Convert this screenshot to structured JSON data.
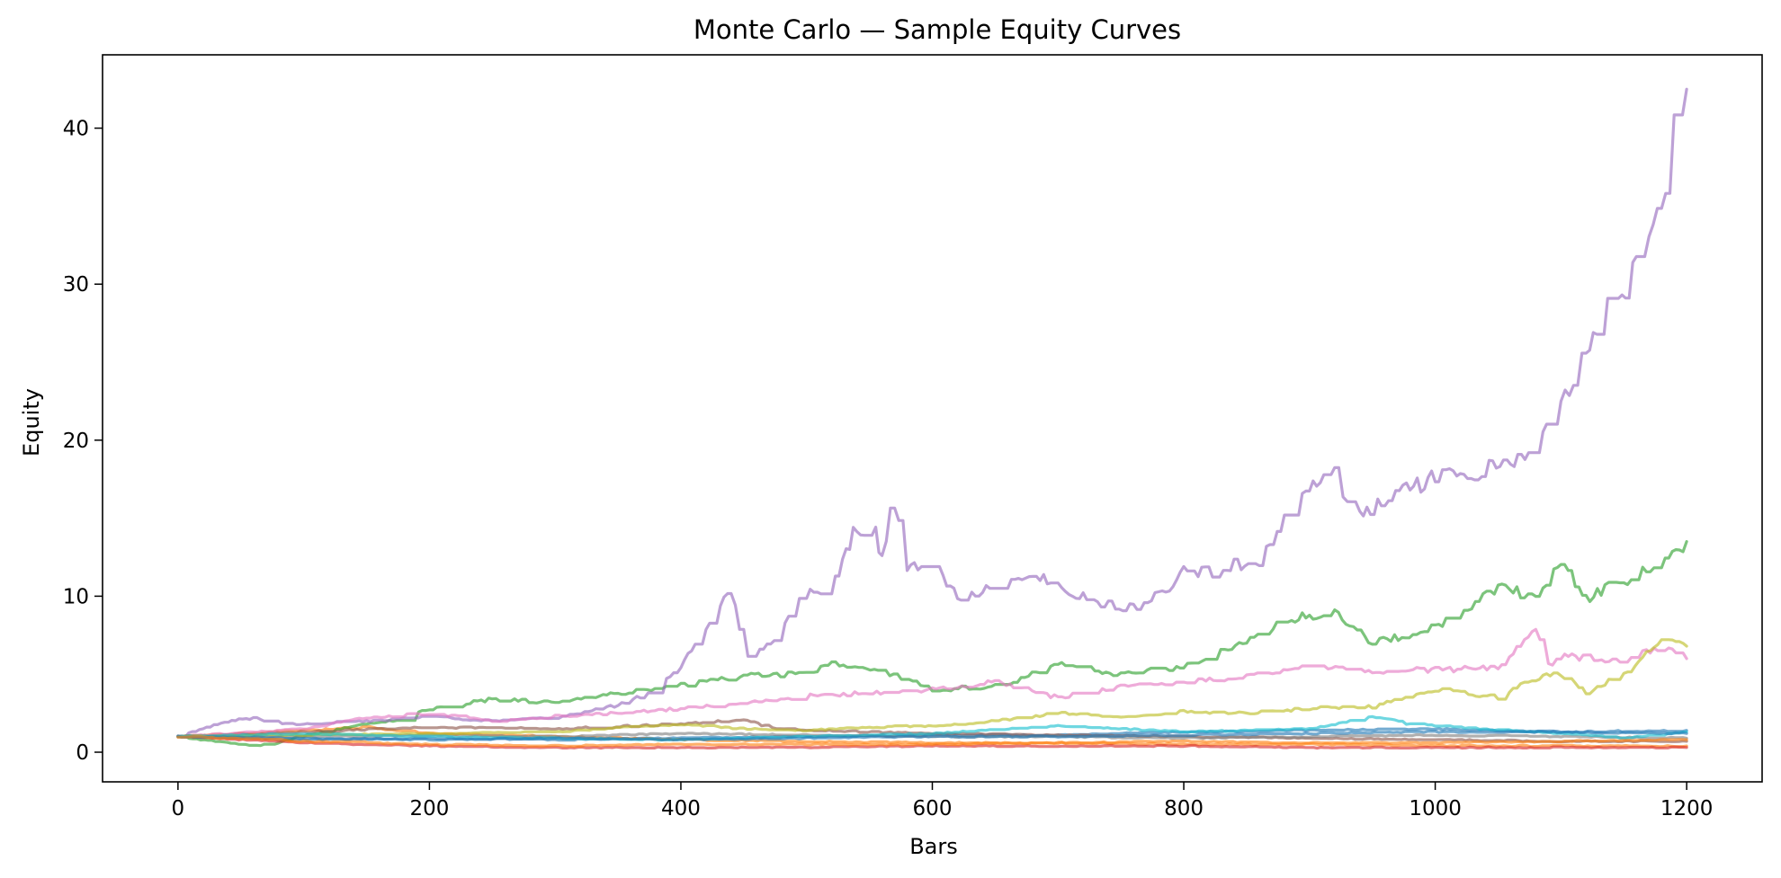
{
  "chart_data": {
    "type": "line",
    "title": "Monte Carlo — Sample Equity Curves",
    "xlabel": "Bars",
    "ylabel": "Equity",
    "xlim": [
      -60,
      1260
    ],
    "ylim": [
      -1.9,
      44.7
    ],
    "xticks": [
      0,
      200,
      400,
      600,
      800,
      1000,
      1200
    ],
    "yticks": [
      0,
      10,
      20,
      30,
      40
    ],
    "grid": false,
    "legend": "none",
    "series": [
      {
        "color": "#1f77b4",
        "x": [
          0,
          100,
          200,
          300,
          400,
          500,
          600,
          700,
          800,
          900,
          1000,
          1100,
          1200
        ],
        "y": [
          1.0,
          0.8,
          0.9,
          0.8,
          0.9,
          1.0,
          1.1,
          1.1,
          1.3,
          1.4,
          1.5,
          1.3,
          1.4
        ]
      },
      {
        "color": "#ff7f0e",
        "x": [
          0,
          100,
          150,
          200,
          300,
          400,
          500,
          600,
          700,
          800,
          900,
          1000,
          1100,
          1200
        ],
        "y": [
          1.0,
          1.4,
          1.6,
          1.2,
          1.0,
          0.8,
          0.7,
          0.6,
          0.6,
          0.5,
          0.5,
          0.4,
          0.4,
          0.4
        ]
      },
      {
        "color": "#2ca02c",
        "x": [
          0,
          30,
          60,
          80,
          100,
          150,
          180,
          200,
          250,
          300,
          350,
          400,
          450,
          500,
          520,
          560,
          600,
          650,
          700,
          750,
          780,
          800,
          850,
          880,
          900,
          920,
          950,
          1000,
          1020,
          1050,
          1080,
          1100,
          1120,
          1150,
          1180,
          1200
        ],
        "y": [
          1.0,
          0.7,
          0.4,
          0.6,
          1.1,
          1.8,
          2.1,
          2.8,
          3.4,
          3.2,
          3.8,
          4.3,
          4.9,
          5.0,
          5.6,
          5.2,
          4.0,
          4.2,
          5.6,
          5.0,
          5.3,
          5.5,
          7.0,
          8.5,
          8.8,
          9.0,
          7.0,
          8.0,
          9.0,
          10.5,
          10.0,
          12.0,
          9.8,
          11.0,
          12.0,
          13.5
        ]
      },
      {
        "color": "#d62728",
        "x": [
          0,
          100,
          200,
          300,
          400,
          500,
          600,
          700,
          800,
          900,
          1000,
          1100,
          1200
        ],
        "y": [
          1.0,
          0.6,
          0.4,
          0.3,
          0.3,
          0.3,
          0.4,
          0.4,
          0.4,
          0.3,
          0.3,
          0.3,
          0.3
        ]
      },
      {
        "color": "#9467bd",
        "x": [
          0,
          20,
          40,
          60,
          80,
          100,
          150,
          200,
          250,
          300,
          350,
          380,
          400,
          420,
          440,
          450,
          460,
          480,
          500,
          520,
          540,
          555,
          560,
          570,
          580,
          600,
          620,
          640,
          660,
          680,
          700,
          720,
          740,
          760,
          780,
          800,
          820,
          840,
          860,
          880,
          900,
          920,
          930,
          940,
          960,
          980,
          1000,
          1020,
          1040,
          1060,
          1080,
          1100,
          1110,
          1120,
          1140,
          1160,
          1170,
          1180,
          1190,
          1200
        ],
        "y": [
          1.0,
          1.5,
          2.0,
          2.2,
          1.8,
          1.8,
          2.0,
          2.3,
          2.0,
          2.2,
          3.0,
          4.0,
          5.5,
          8.0,
          10.8,
          6.3,
          6.3,
          7.8,
          10.5,
          10.5,
          14.5,
          14.0,
          12.5,
          16.6,
          12.0,
          12.0,
          10.0,
          10.5,
          11.0,
          11.5,
          10.5,
          10.0,
          9.5,
          9.2,
          10.0,
          11.5,
          11.5,
          12.0,
          12.0,
          15.0,
          17.0,
          18.2,
          16.0,
          15.3,
          16.0,
          17.0,
          17.5,
          18.0,
          18.0,
          18.8,
          19.0,
          23.3,
          23.5,
          26.0,
          28.5,
          31.0,
          32.0,
          35.0,
          40.0,
          42.5
        ]
      },
      {
        "color": "#8c564b",
        "x": [
          0,
          100,
          200,
          300,
          400,
          450,
          470,
          500,
          600,
          700,
          800,
          900,
          1000,
          1100,
          1200
        ],
        "y": [
          1.0,
          1.3,
          1.6,
          1.5,
          1.8,
          2.1,
          1.6,
          1.4,
          1.2,
          1.1,
          1.0,
          0.9,
          0.8,
          0.7,
          0.7
        ]
      },
      {
        "color": "#e377c2",
        "x": [
          0,
          100,
          150,
          200,
          250,
          300,
          350,
          400,
          450,
          500,
          550,
          600,
          650,
          700,
          750,
          800,
          850,
          900,
          950,
          1000,
          1050,
          1080,
          1090,
          1100,
          1150,
          1180,
          1200
        ],
        "y": [
          1.0,
          1.5,
          2.2,
          2.5,
          2.0,
          2.3,
          2.5,
          2.8,
          3.2,
          3.6,
          3.8,
          4.0,
          4.5,
          3.5,
          4.2,
          4.5,
          4.8,
          5.5,
          5.2,
          5.3,
          5.4,
          7.9,
          5.5,
          6.2,
          5.8,
          6.8,
          6.0
        ]
      },
      {
        "color": "#7f7f7f",
        "x": [
          0,
          100,
          200,
          300,
          400,
          500,
          600,
          700,
          800,
          900,
          1000,
          1100,
          1200
        ],
        "y": [
          1.0,
          1.0,
          1.1,
          1.0,
          1.2,
          1.1,
          1.0,
          1.0,
          0.9,
          1.0,
          1.1,
          1.0,
          0.9
        ]
      },
      {
        "color": "#bcbd22",
        "x": [
          0,
          100,
          200,
          300,
          400,
          450,
          500,
          550,
          600,
          650,
          700,
          750,
          800,
          850,
          900,
          950,
          1000,
          1050,
          1080,
          1100,
          1120,
          1150,
          1180,
          1200
        ],
        "y": [
          1.0,
          1.1,
          1.2,
          1.3,
          1.8,
          1.5,
          1.4,
          1.6,
          1.7,
          2.0,
          2.5,
          2.3,
          2.6,
          2.5,
          2.8,
          2.9,
          4.0,
          3.5,
          4.8,
          5.0,
          3.8,
          5.0,
          7.2,
          6.8
        ]
      },
      {
        "color": "#17becf",
        "x": [
          0,
          100,
          200,
          300,
          400,
          500,
          600,
          700,
          800,
          900,
          950,
          980,
          1000,
          1050,
          1100,
          1150,
          1200
        ],
        "y": [
          1.0,
          1.2,
          1.0,
          0.9,
          0.8,
          1.0,
          1.2,
          1.7,
          1.3,
          1.5,
          2.3,
          1.8,
          1.7,
          1.4,
          1.2,
          0.9,
          1.3
        ]
      },
      {
        "color": "#1f77b4",
        "x": [
          0,
          100,
          200,
          300,
          400,
          500,
          600,
          700,
          800,
          900,
          1000,
          1100,
          1200
        ],
        "y": [
          1.0,
          0.9,
          0.8,
          0.9,
          0.8,
          0.9,
          1.0,
          1.0,
          1.1,
          1.2,
          1.3,
          1.3,
          1.2
        ]
      },
      {
        "color": "#ff7f0e",
        "x": [
          0,
          100,
          200,
          300,
          400,
          500,
          600,
          700,
          800,
          900,
          1000,
          1100,
          1200
        ],
        "y": [
          1.0,
          0.7,
          0.5,
          0.4,
          0.5,
          0.5,
          0.5,
          0.6,
          0.7,
          0.6,
          0.6,
          0.7,
          0.8
        ]
      }
    ]
  }
}
